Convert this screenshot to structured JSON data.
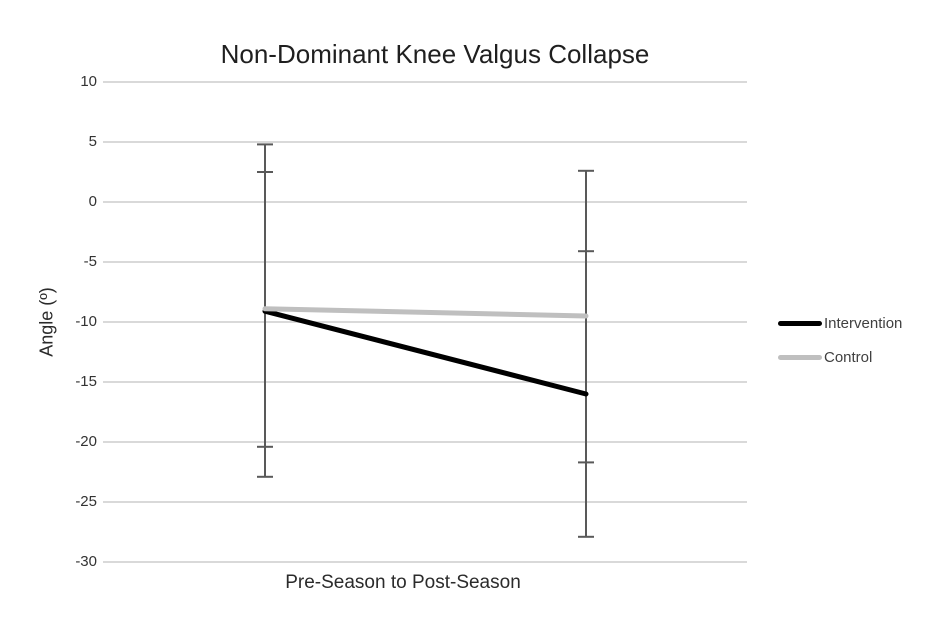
{
  "page": {
    "background": "#ffffff"
  },
  "chart_data": {
    "type": "line",
    "title": "Non-Dominant Knee Valgus Collapse",
    "xlabel": "Pre-Season to Post-Season",
    "ylabel": "Angle (º)",
    "categories": [
      "Pre-Season",
      "Post-Season"
    ],
    "ylim": [
      -30,
      10
    ],
    "yticks": [
      10,
      5,
      0,
      -5,
      -10,
      -15,
      -20,
      -25,
      -30
    ],
    "grid": true,
    "gridline_color": "#d9d9d9",
    "tick_label_color": "#333333",
    "title_color": "#1f1f1f",
    "error_bar_color": "#595959",
    "legend_position": "right",
    "legend_text_color": "#404040",
    "series": [
      {
        "name": "Intervention",
        "color": "#000000",
        "values": [
          -9.1,
          -16.0
        ],
        "error_upper": [
          4.8,
          -4.1
        ],
        "error_lower": [
          -22.9,
          -27.9
        ]
      },
      {
        "name": "Control",
        "color": "#bfbfbf",
        "values": [
          -8.9,
          -9.5
        ],
        "error_upper": [
          2.5,
          2.6
        ],
        "error_lower": [
          -20.4,
          -21.7
        ]
      }
    ]
  }
}
